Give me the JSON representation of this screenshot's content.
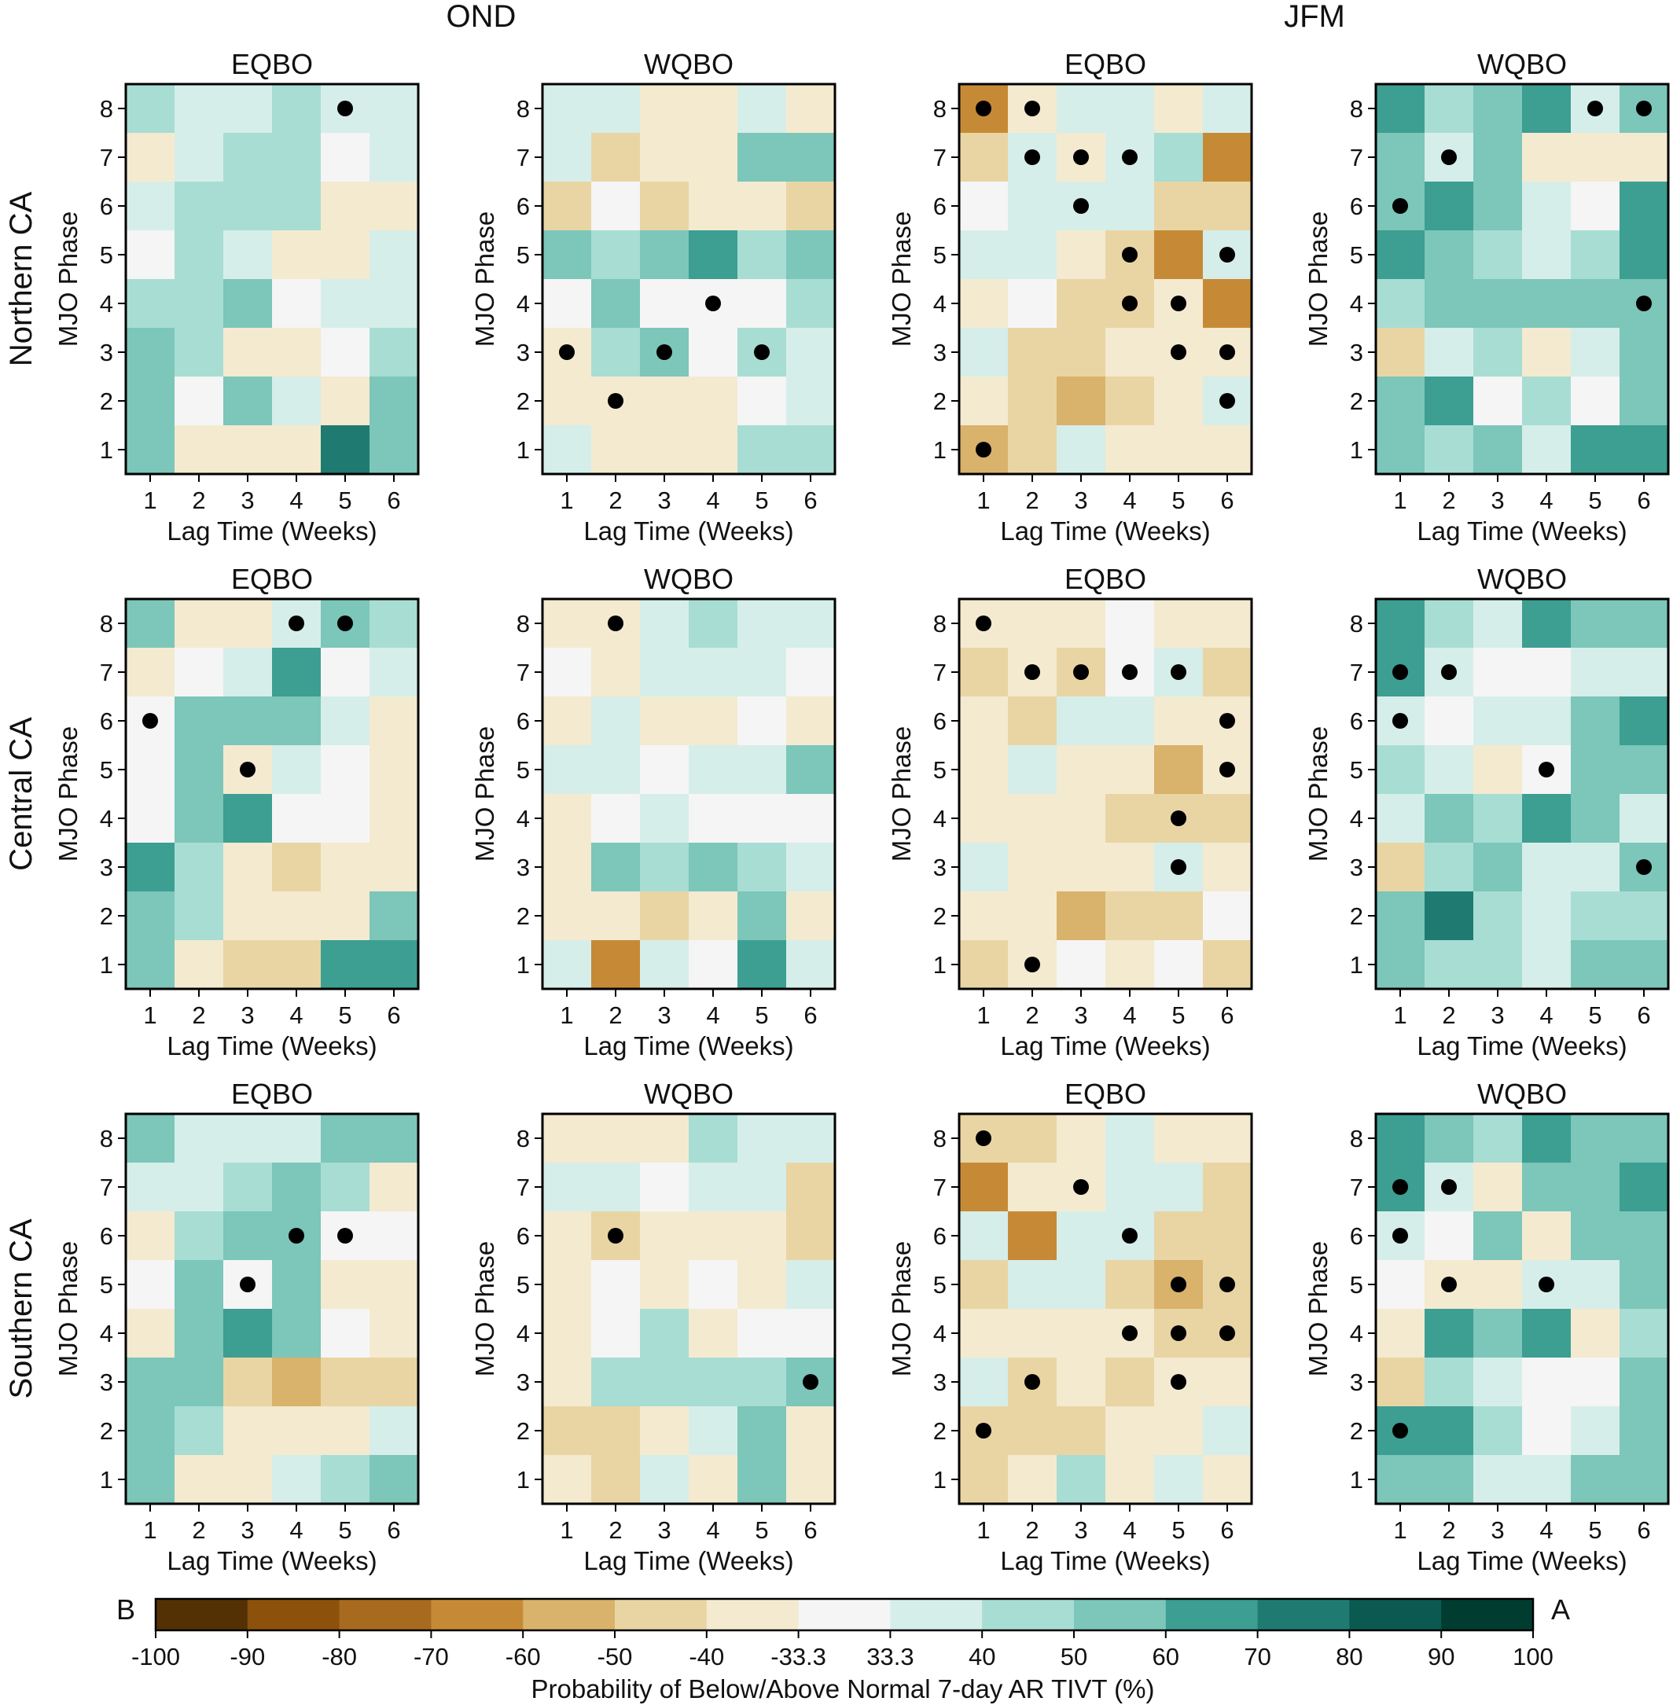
{
  "figure": {
    "season_labels": [
      "OND",
      "JFM"
    ],
    "region_labels": [
      "Northern CA",
      "Central CA",
      "Southern CA"
    ],
    "colorbar": {
      "label": "Probability of Below/Above Normal 7-day AR TIVT (%)",
      "left_end": "B",
      "right_end": "A",
      "ticks": [
        "-100",
        "-90",
        "-80",
        "-70",
        "-60",
        "-50",
        "-40",
        "-33.3",
        "33.3",
        "40",
        "50",
        "60",
        "70",
        "80",
        "90",
        "100"
      ],
      "colors": [
        "#543005",
        "#8c510a",
        "#a86a1f",
        "#c68a36",
        "#d9b26b",
        "#e9d5a4",
        "#f4ead0",
        "#f5f5f5",
        "#d6eee9",
        "#a8ddd4",
        "#7cc6ba",
        "#3d9e92",
        "#1f7b72",
        "#0b5a51",
        "#003c30"
      ]
    }
  },
  "chart_data": [
    {
      "type": "heatmap",
      "season": "OND",
      "region": "Northern CA",
      "title": "EQBO",
      "xlabel": "Lag Time (Weeks)",
      "ylabel": "MJO Phase",
      "x": [
        1,
        2,
        3,
        4,
        5,
        6
      ],
      "y": [
        1,
        2,
        3,
        4,
        5,
        6,
        7,
        8
      ],
      "values": [
        [
          9,
          8,
          8,
          9,
          8,
          8
        ],
        [
          6,
          8,
          9,
          9,
          7,
          8
        ],
        [
          8,
          9,
          9,
          9,
          6,
          6
        ],
        [
          7,
          9,
          8,
          6,
          6,
          8
        ],
        [
          9,
          9,
          10,
          7,
          8,
          8
        ],
        [
          10,
          9,
          6,
          6,
          7,
          9
        ],
        [
          10,
          7,
          10,
          8,
          6,
          10
        ],
        [
          10,
          6,
          6,
          6,
          12,
          10
        ]
      ],
      "dots": [
        [
          5,
          8
        ]
      ]
    },
    {
      "type": "heatmap",
      "season": "OND",
      "region": "Northern CA",
      "title": "WQBO",
      "xlabel": "Lag Time (Weeks)",
      "ylabel": "MJO Phase",
      "x": [
        1,
        2,
        3,
        4,
        5,
        6
      ],
      "y": [
        1,
        2,
        3,
        4,
        5,
        6,
        7,
        8
      ],
      "values": [
        [
          8,
          8,
          6,
          6,
          8,
          6
        ],
        [
          8,
          5,
          6,
          6,
          10,
          10
        ],
        [
          5,
          7,
          5,
          6,
          6,
          5
        ],
        [
          10,
          9,
          10,
          11,
          9,
          10
        ],
        [
          7,
          10,
          7,
          7,
          7,
          9
        ],
        [
          6,
          9,
          10,
          7,
          9,
          8
        ],
        [
          6,
          6,
          6,
          6,
          7,
          8
        ],
        [
          8,
          6,
          6,
          6,
          9,
          9
        ]
      ],
      "dots": [
        [
          1,
          3
        ],
        [
          2,
          2
        ],
        [
          3,
          3
        ],
        [
          4,
          4
        ],
        [
          5,
          3
        ]
      ]
    },
    {
      "type": "heatmap",
      "season": "JFM",
      "region": "Northern CA",
      "title": "EQBO",
      "xlabel": "Lag Time (Weeks)",
      "ylabel": "MJO Phase",
      "x": [
        1,
        2,
        3,
        4,
        5,
        6
      ],
      "y": [
        1,
        2,
        3,
        4,
        5,
        6,
        7,
        8
      ],
      "values": [
        [
          3,
          6,
          8,
          8,
          6,
          8
        ],
        [
          5,
          8,
          6,
          8,
          9,
          3
        ],
        [
          7,
          8,
          8,
          8,
          5,
          5
        ],
        [
          8,
          8,
          6,
          5,
          3,
          8
        ],
        [
          6,
          7,
          5,
          5,
          6,
          3
        ],
        [
          8,
          5,
          5,
          6,
          6,
          6
        ],
        [
          6,
          5,
          4,
          5,
          6,
          8
        ],
        [
          4,
          5,
          8,
          6,
          6,
          6
        ]
      ],
      "dots": [
        [
          1,
          1
        ],
        [
          6,
          2
        ],
        [
          5,
          3
        ],
        [
          6,
          3
        ],
        [
          4,
          4
        ],
        [
          5,
          4
        ],
        [
          4,
          5
        ],
        [
          6,
          5
        ],
        [
          3,
          6
        ],
        [
          2,
          7
        ],
        [
          3,
          7
        ],
        [
          4,
          7
        ],
        [
          1,
          8
        ],
        [
          2,
          8
        ]
      ]
    },
    {
      "type": "heatmap",
      "season": "JFM",
      "region": "Northern CA",
      "title": "WQBO",
      "xlabel": "Lag Time (Weeks)",
      "ylabel": "MJO Phase",
      "x": [
        1,
        2,
        3,
        4,
        5,
        6
      ],
      "y": [
        1,
        2,
        3,
        4,
        5,
        6,
        7,
        8
      ],
      "values": [
        [
          11,
          9,
          10,
          11,
          8,
          10
        ],
        [
          10,
          8,
          10,
          6,
          6,
          6
        ],
        [
          10,
          11,
          10,
          8,
          7,
          11
        ],
        [
          11,
          10,
          9,
          8,
          9,
          11
        ],
        [
          9,
          10,
          10,
          10,
          10,
          10
        ],
        [
          5,
          8,
          9,
          6,
          8,
          10
        ],
        [
          10,
          11,
          7,
          9,
          7,
          10
        ],
        [
          10,
          9,
          10,
          8,
          11,
          11
        ]
      ],
      "dots": [
        [
          1,
          6
        ],
        [
          2,
          7
        ],
        [
          5,
          8
        ],
        [
          6,
          8
        ],
        [
          6,
          4
        ]
      ]
    },
    {
      "type": "heatmap",
      "season": "OND",
      "region": "Central CA",
      "title": "EQBO",
      "xlabel": "Lag Time (Weeks)",
      "ylabel": "MJO Phase",
      "x": [
        1,
        2,
        3,
        4,
        5,
        6
      ],
      "y": [
        1,
        2,
        3,
        4,
        5,
        6,
        7,
        8
      ],
      "values": [
        [
          10,
          6,
          6,
          8,
          10,
          9
        ],
        [
          6,
          7,
          8,
          11,
          7,
          8
        ],
        [
          7,
          10,
          10,
          10,
          8,
          6
        ],
        [
          7,
          10,
          6,
          8,
          7,
          6
        ],
        [
          7,
          10,
          11,
          7,
          7,
          6
        ],
        [
          11,
          9,
          6,
          5,
          6,
          6
        ],
        [
          10,
          9,
          6,
          6,
          6,
          10
        ],
        [
          10,
          6,
          5,
          5,
          11,
          11
        ]
      ],
      "dots": [
        [
          1,
          6
        ],
        [
          3,
          5
        ],
        [
          4,
          8
        ],
        [
          5,
          8
        ]
      ]
    },
    {
      "type": "heatmap",
      "season": "OND",
      "region": "Central CA",
      "title": "WQBO",
      "xlabel": "Lag Time (Weeks)",
      "ylabel": "MJO Phase",
      "x": [
        1,
        2,
        3,
        4,
        5,
        6
      ],
      "y": [
        1,
        2,
        3,
        4,
        5,
        6,
        7,
        8
      ],
      "values": [
        [
          6,
          6,
          8,
          9,
          8,
          8
        ],
        [
          7,
          6,
          8,
          8,
          8,
          7
        ],
        [
          6,
          8,
          6,
          6,
          7,
          6
        ],
        [
          8,
          8,
          7,
          8,
          8,
          10
        ],
        [
          6,
          7,
          8,
          7,
          7,
          7
        ],
        [
          6,
          10,
          9,
          10,
          9,
          8
        ],
        [
          6,
          6,
          5,
          6,
          10,
          6
        ],
        [
          8,
          3,
          8,
          7,
          11,
          8
        ]
      ],
      "dots": [
        [
          2,
          8
        ]
      ]
    },
    {
      "type": "heatmap",
      "season": "JFM",
      "region": "Central CA",
      "title": "EQBO",
      "xlabel": "Lag Time (Weeks)",
      "ylabel": "MJO Phase",
      "x": [
        1,
        2,
        3,
        4,
        5,
        6
      ],
      "y": [
        1,
        2,
        3,
        4,
        5,
        6,
        7,
        8
      ],
      "values": [
        [
          6,
          6,
          6,
          7,
          6,
          6
        ],
        [
          5,
          6,
          5,
          7,
          8,
          5
        ],
        [
          6,
          5,
          8,
          8,
          6,
          6
        ],
        [
          6,
          8,
          6,
          6,
          4,
          6
        ],
        [
          6,
          6,
          6,
          5,
          5,
          5
        ],
        [
          8,
          6,
          6,
          6,
          8,
          6
        ],
        [
          6,
          6,
          4,
          5,
          5,
          7
        ],
        [
          5,
          6,
          7,
          6,
          7,
          5
        ]
      ],
      "dots": [
        [
          2,
          1
        ],
        [
          5,
          3
        ],
        [
          5,
          4
        ],
        [
          6,
          5
        ],
        [
          6,
          6
        ],
        [
          2,
          7
        ],
        [
          3,
          7
        ],
        [
          4,
          7
        ],
        [
          5,
          7
        ],
        [
          1,
          8
        ]
      ]
    },
    {
      "type": "heatmap",
      "season": "JFM",
      "region": "Central CA",
      "title": "WQBO",
      "xlabel": "Lag Time (Weeks)",
      "ylabel": "MJO Phase",
      "x": [
        1,
        2,
        3,
        4,
        5,
        6
      ],
      "y": [
        1,
        2,
        3,
        4,
        5,
        6,
        7,
        8
      ],
      "values": [
        [
          11,
          9,
          8,
          11,
          10,
          10
        ],
        [
          11,
          8,
          7,
          7,
          8,
          8
        ],
        [
          8,
          7,
          8,
          8,
          10,
          11
        ],
        [
          9,
          8,
          6,
          7,
          10,
          10
        ],
        [
          8,
          10,
          9,
          11,
          10,
          8
        ],
        [
          5,
          9,
          10,
          8,
          8,
          10
        ],
        [
          10,
          12,
          9,
          8,
          9,
          9
        ],
        [
          10,
          9,
          9,
          8,
          10,
          10
        ]
      ],
      "dots": [
        [
          1,
          7
        ],
        [
          2,
          7
        ],
        [
          1,
          6
        ],
        [
          4,
          5
        ],
        [
          6,
          3
        ]
      ]
    },
    {
      "type": "heatmap",
      "season": "OND",
      "region": "Southern CA",
      "title": "EQBO",
      "xlabel": "Lag Time (Weeks)",
      "ylabel": "MJO Phase",
      "x": [
        1,
        2,
        3,
        4,
        5,
        6
      ],
      "y": [
        1,
        2,
        3,
        4,
        5,
        6,
        7,
        8
      ],
      "values": [
        [
          10,
          8,
          8,
          8,
          10,
          10
        ],
        [
          8,
          8,
          9,
          10,
          9,
          6
        ],
        [
          6,
          9,
          10,
          10,
          7,
          7
        ],
        [
          7,
          10,
          7,
          10,
          6,
          6
        ],
        [
          6,
          10,
          11,
          10,
          7,
          6
        ],
        [
          10,
          10,
          5,
          4,
          5,
          5
        ],
        [
          10,
          9,
          6,
          6,
          6,
          8
        ],
        [
          10,
          6,
          6,
          8,
          9,
          10
        ]
      ],
      "dots": [
        [
          3,
          5
        ],
        [
          4,
          6
        ],
        [
          5,
          6
        ]
      ]
    },
    {
      "type": "heatmap",
      "season": "OND",
      "region": "Southern CA",
      "title": "WQBO",
      "xlabel": "Lag Time (Weeks)",
      "ylabel": "MJO Phase",
      "x": [
        1,
        2,
        3,
        4,
        5,
        6
      ],
      "y": [
        1,
        2,
        3,
        4,
        5,
        6,
        7,
        8
      ],
      "values": [
        [
          6,
          6,
          6,
          9,
          8,
          8
        ],
        [
          8,
          8,
          7,
          8,
          8,
          5
        ],
        [
          6,
          5,
          6,
          6,
          6,
          5
        ],
        [
          6,
          7,
          6,
          7,
          6,
          8
        ],
        [
          6,
          7,
          9,
          6,
          7,
          7
        ],
        [
          6,
          9,
          9,
          9,
          9,
          10
        ],
        [
          5,
          5,
          6,
          8,
          10,
          6
        ],
        [
          6,
          5,
          8,
          6,
          10,
          6
        ]
      ],
      "dots": [
        [
          2,
          6
        ],
        [
          6,
          3
        ]
      ]
    },
    {
      "type": "heatmap",
      "season": "JFM",
      "region": "Southern CA",
      "title": "EQBO",
      "xlabel": "Lag Time (Weeks)",
      "ylabel": "MJO Phase",
      "x": [
        1,
        2,
        3,
        4,
        5,
        6
      ],
      "y": [
        1,
        2,
        3,
        4,
        5,
        6,
        7,
        8
      ],
      "values": [
        [
          5,
          5,
          6,
          8,
          6,
          6
        ],
        [
          3,
          6,
          6,
          8,
          8,
          5
        ],
        [
          8,
          3,
          8,
          8,
          5,
          5
        ],
        [
          5,
          8,
          8,
          5,
          4,
          5
        ],
        [
          6,
          6,
          6,
          6,
          5,
          5
        ],
        [
          8,
          5,
          6,
          5,
          6,
          6
        ],
        [
          5,
          5,
          5,
          6,
          6,
          8
        ],
        [
          5,
          6,
          9,
          6,
          8,
          6
        ]
      ],
      "dots": [
        [
          1,
          2
        ],
        [
          2,
          3
        ],
        [
          5,
          3
        ],
        [
          4,
          4
        ],
        [
          5,
          4
        ],
        [
          6,
          4
        ],
        [
          5,
          5
        ],
        [
          6,
          5
        ],
        [
          4,
          6
        ],
        [
          3,
          7
        ],
        [
          1,
          8
        ]
      ]
    },
    {
      "type": "heatmap",
      "season": "JFM",
      "region": "Southern CA",
      "title": "WQBO",
      "xlabel": "Lag Time (Weeks)",
      "ylabel": "MJO Phase",
      "x": [
        1,
        2,
        3,
        4,
        5,
        6
      ],
      "y": [
        1,
        2,
        3,
        4,
        5,
        6,
        7,
        8
      ],
      "values": [
        [
          11,
          10,
          9,
          11,
          10,
          10
        ],
        [
          11,
          8,
          6,
          10,
          10,
          11
        ],
        [
          8,
          7,
          10,
          6,
          10,
          10
        ],
        [
          7,
          6,
          6,
          8,
          8,
          10
        ],
        [
          6,
          11,
          10,
          11,
          6,
          9
        ],
        [
          5,
          9,
          8,
          7,
          7,
          10
        ],
        [
          11,
          11,
          9,
          7,
          8,
          10
        ],
        [
          10,
          10,
          8,
          8,
          10,
          10
        ]
      ],
      "dots": [
        [
          1,
          2
        ],
        [
          2,
          5
        ],
        [
          4,
          5
        ],
        [
          1,
          6
        ],
        [
          1,
          7
        ],
        [
          2,
          7
        ]
      ]
    }
  ]
}
